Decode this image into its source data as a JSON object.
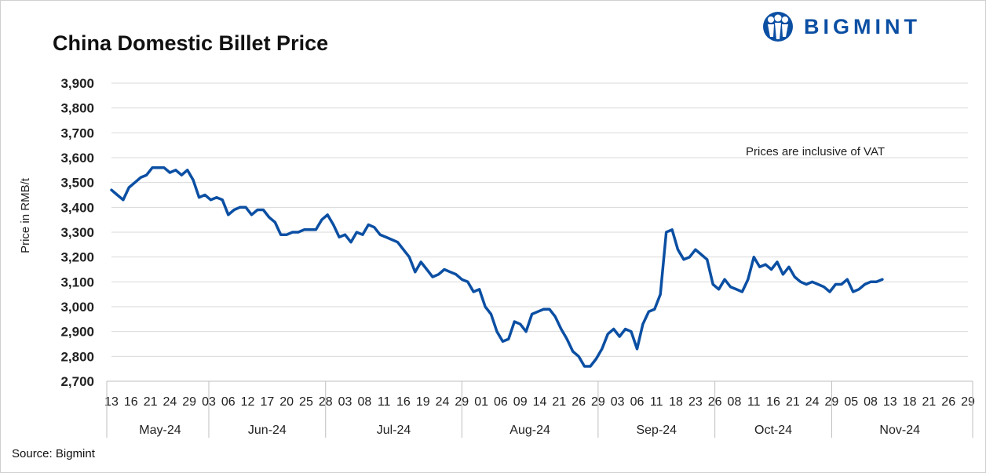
{
  "brand": {
    "name": "BIGMINT",
    "color": "#0b4fa3",
    "logo_icon": "people-circle-logo-icon"
  },
  "source": "Source: Bigmint",
  "chart_data": {
    "type": "line",
    "title": "China Domestic Billet Price",
    "xlabel": "",
    "ylabel": "Price in RMB/t",
    "ylim": [
      2700,
      3900
    ],
    "y_ticks": [
      2700,
      2800,
      2900,
      3000,
      3100,
      3200,
      3300,
      3400,
      3500,
      3600,
      3700,
      3800,
      3900
    ],
    "y_tick_labels": [
      "2,700",
      "2,800",
      "2,900",
      "3,000",
      "3,100",
      "3,200",
      "3,300",
      "3,400",
      "3,500",
      "3,600",
      "3,700",
      "3,800",
      "3,900"
    ],
    "grid": "horizontal",
    "line_color": "#0b4fa3",
    "annotation": "Prices are inclusive of VAT",
    "months": [
      {
        "label": "May-24",
        "from": 0,
        "to": 5
      },
      {
        "label": "Jun-24",
        "from": 5,
        "to": 11
      },
      {
        "label": "Jul-24",
        "from": 11,
        "to": 18
      },
      {
        "label": "Aug-24",
        "from": 18,
        "to": 25
      },
      {
        "label": "Sep-24",
        "from": 25,
        "to": 31
      },
      {
        "label": "Oct-24",
        "from": 31,
        "to": 37
      },
      {
        "label": "Nov-24",
        "from": 37,
        "to": 44
      }
    ],
    "x_ticks": [
      {
        "index": 0,
        "label": "13"
      },
      {
        "index": 1,
        "label": "16"
      },
      {
        "index": 2,
        "label": "21"
      },
      {
        "index": 3,
        "label": "24"
      },
      {
        "index": 4,
        "label": "29"
      },
      {
        "index": 5,
        "label": "03"
      },
      {
        "index": 6,
        "label": "06"
      },
      {
        "index": 7,
        "label": "12"
      },
      {
        "index": 8,
        "label": "17"
      },
      {
        "index": 9,
        "label": "20"
      },
      {
        "index": 10,
        "label": "25"
      },
      {
        "index": 11,
        "label": "28"
      },
      {
        "index": 12,
        "label": "03"
      },
      {
        "index": 13,
        "label": "08"
      },
      {
        "index": 14,
        "label": "11"
      },
      {
        "index": 15,
        "label": "16"
      },
      {
        "index": 16,
        "label": "19"
      },
      {
        "index": 17,
        "label": "24"
      },
      {
        "index": 18,
        "label": "29"
      },
      {
        "index": 19,
        "label": "01"
      },
      {
        "index": 20,
        "label": "06"
      },
      {
        "index": 21,
        "label": "09"
      },
      {
        "index": 22,
        "label": "14"
      },
      {
        "index": 23,
        "label": "21"
      },
      {
        "index": 24,
        "label": "26"
      },
      {
        "index": 25,
        "label": "29"
      },
      {
        "index": 26,
        "label": "03"
      },
      {
        "index": 27,
        "label": "06"
      },
      {
        "index": 28,
        "label": "11"
      },
      {
        "index": 29,
        "label": "18"
      },
      {
        "index": 30,
        "label": "23"
      },
      {
        "index": 31,
        "label": "26"
      },
      {
        "index": 32,
        "label": "08"
      },
      {
        "index": 33,
        "label": "11"
      },
      {
        "index": 34,
        "label": "16"
      },
      {
        "index": 35,
        "label": "21"
      },
      {
        "index": 36,
        "label": "24"
      },
      {
        "index": 37,
        "label": "29"
      },
      {
        "index": 38,
        "label": "05"
      },
      {
        "index": 39,
        "label": "08"
      },
      {
        "index": 40,
        "label": "13"
      },
      {
        "index": 41,
        "label": "18"
      },
      {
        "index": 42,
        "label": "21"
      },
      {
        "index": 43,
        "label": "26"
      },
      {
        "index": 44,
        "label": "29"
      }
    ],
    "series": [
      {
        "values": [
          [
            0,
            3470
          ],
          [
            0.3,
            3450
          ],
          [
            0.6,
            3430
          ],
          [
            0.9,
            3480
          ],
          [
            1.2,
            3500
          ],
          [
            1.5,
            3520
          ],
          [
            1.8,
            3530
          ],
          [
            2.1,
            3560
          ],
          [
            2.4,
            3560
          ],
          [
            2.7,
            3560
          ],
          [
            3.0,
            3540
          ],
          [
            3.3,
            3550
          ],
          [
            3.6,
            3530
          ],
          [
            3.9,
            3550
          ],
          [
            4.2,
            3510
          ],
          [
            4.5,
            3440
          ],
          [
            4.8,
            3450
          ],
          [
            5.1,
            3430
          ],
          [
            5.4,
            3440
          ],
          [
            5.7,
            3430
          ],
          [
            6.0,
            3370
          ],
          [
            6.3,
            3390
          ],
          [
            6.6,
            3400
          ],
          [
            6.9,
            3400
          ],
          [
            7.2,
            3370
          ],
          [
            7.5,
            3390
          ],
          [
            7.8,
            3390
          ],
          [
            8.1,
            3360
          ],
          [
            8.4,
            3340
          ],
          [
            8.7,
            3290
          ],
          [
            9.0,
            3290
          ],
          [
            9.3,
            3300
          ],
          [
            9.6,
            3300
          ],
          [
            9.9,
            3310
          ],
          [
            10.2,
            3310
          ],
          [
            10.5,
            3310
          ],
          [
            10.8,
            3350
          ],
          [
            11.1,
            3370
          ],
          [
            11.4,
            3330
          ],
          [
            11.7,
            3280
          ],
          [
            12.0,
            3290
          ],
          [
            12.3,
            3260
          ],
          [
            12.6,
            3300
          ],
          [
            12.9,
            3290
          ],
          [
            13.2,
            3330
          ],
          [
            13.5,
            3320
          ],
          [
            13.8,
            3290
          ],
          [
            14.1,
            3280
          ],
          [
            14.4,
            3270
          ],
          [
            14.7,
            3260
          ],
          [
            15.0,
            3230
          ],
          [
            15.3,
            3200
          ],
          [
            15.6,
            3140
          ],
          [
            15.9,
            3180
          ],
          [
            16.2,
            3150
          ],
          [
            16.5,
            3120
          ],
          [
            16.8,
            3130
          ],
          [
            17.1,
            3150
          ],
          [
            17.4,
            3140
          ],
          [
            17.7,
            3130
          ],
          [
            18.0,
            3110
          ],
          [
            18.3,
            3100
          ],
          [
            18.6,
            3060
          ],
          [
            18.9,
            3070
          ],
          [
            19.2,
            3000
          ],
          [
            19.5,
            2970
          ],
          [
            19.8,
            2900
          ],
          [
            20.1,
            2860
          ],
          [
            20.4,
            2870
          ],
          [
            20.7,
            2940
          ],
          [
            21.0,
            2930
          ],
          [
            21.3,
            2900
          ],
          [
            21.6,
            2970
          ],
          [
            21.9,
            2980
          ],
          [
            22.2,
            2990
          ],
          [
            22.5,
            2990
          ],
          [
            22.8,
            2960
          ],
          [
            23.1,
            2910
          ],
          [
            23.4,
            2870
          ],
          [
            23.7,
            2820
          ],
          [
            24.0,
            2800
          ],
          [
            24.3,
            2760
          ],
          [
            24.6,
            2760
          ],
          [
            24.9,
            2790
          ],
          [
            25.2,
            2830
          ],
          [
            25.5,
            2890
          ],
          [
            25.8,
            2910
          ],
          [
            26.1,
            2880
          ],
          [
            26.4,
            2910
          ],
          [
            26.7,
            2900
          ],
          [
            27.0,
            2830
          ],
          [
            27.3,
            2930
          ],
          [
            27.6,
            2980
          ],
          [
            27.9,
            2990
          ],
          [
            28.2,
            3050
          ],
          [
            28.5,
            3300
          ],
          [
            28.8,
            3310
          ],
          [
            29.1,
            3230
          ],
          [
            29.4,
            3190
          ],
          [
            29.7,
            3200
          ],
          [
            30.0,
            3230
          ],
          [
            30.3,
            3210
          ],
          [
            30.6,
            3190
          ],
          [
            30.9,
            3090
          ],
          [
            31.2,
            3070
          ],
          [
            31.5,
            3110
          ],
          [
            31.8,
            3080
          ],
          [
            32.1,
            3070
          ],
          [
            32.4,
            3060
          ],
          [
            32.7,
            3110
          ],
          [
            33.0,
            3200
          ],
          [
            33.3,
            3160
          ],
          [
            33.6,
            3170
          ],
          [
            33.9,
            3150
          ],
          [
            34.2,
            3180
          ],
          [
            34.5,
            3130
          ],
          [
            34.8,
            3160
          ],
          [
            35.1,
            3120
          ],
          [
            35.4,
            3100
          ],
          [
            35.7,
            3090
          ],
          [
            36.0,
            3100
          ],
          [
            36.3,
            3090
          ],
          [
            36.6,
            3080
          ],
          [
            36.9,
            3060
          ],
          [
            37.2,
            3090
          ],
          [
            37.5,
            3090
          ],
          [
            37.8,
            3110
          ],
          [
            38.1,
            3060
          ],
          [
            38.4,
            3070
          ],
          [
            38.7,
            3090
          ],
          [
            39.0,
            3100
          ],
          [
            39.3,
            3100
          ],
          [
            39.6,
            3110
          ]
        ]
      }
    ]
  }
}
